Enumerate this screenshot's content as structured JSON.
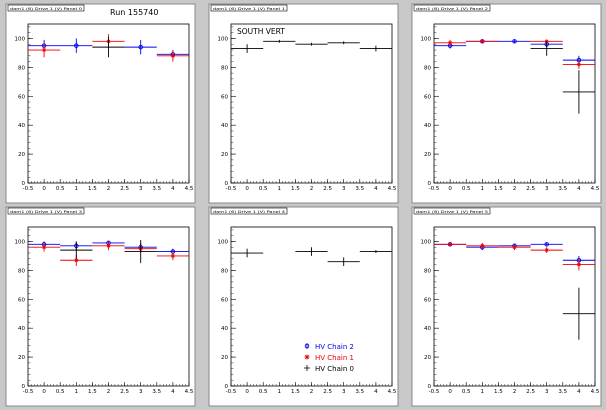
{
  "run_label": "Run 155740",
  "colors": {
    "chain0": "#000000",
    "chain1": "#ee0000",
    "chain2": "#0000ee",
    "background": "#c8c8c8",
    "pad": "#ffffff"
  },
  "legend": [
    {
      "key": "chain2",
      "label": "HV Chain 2",
      "marker": "circle"
    },
    {
      "key": "chain1",
      "label": "HV Chain 1",
      "marker": "star"
    },
    {
      "key": "chain0",
      "label": "HV Chain 0",
      "marker": "cross"
    }
  ],
  "chart_data": [
    {
      "type": "scatter",
      "title": "dam1 (6) Drive 1 (V) Panel 0",
      "annotation": "",
      "x": [
        0,
        1,
        2,
        3,
        4
      ],
      "xlim": [
        -0.5,
        4.5
      ],
      "ylim": [
        0,
        110
      ],
      "xticks": [
        "-0.5",
        "0",
        "0.5",
        "1",
        "1.5",
        "2",
        "2.5",
        "3",
        "3.5",
        "4",
        "4.5"
      ],
      "yticks": [
        "0",
        "20",
        "40",
        "60",
        "80",
        "100"
      ],
      "series": [
        {
          "key": "chain2",
          "values": [
            95,
            95,
            null,
            94,
            89
          ],
          "errors": [
            4,
            5,
            null,
            5,
            3
          ]
        },
        {
          "key": "chain1",
          "values": [
            92,
            null,
            98,
            null,
            88
          ],
          "errors": [
            5,
            null,
            5,
            null,
            4
          ]
        },
        {
          "key": "chain0",
          "values": [
            null,
            null,
            94,
            null,
            null
          ],
          "errors": [
            null,
            null,
            7,
            null,
            null
          ]
        }
      ]
    },
    {
      "type": "scatter",
      "title": "dam1 (6) Drive 1 (V) Panel 1",
      "annotation": "SOUTH VERT",
      "x": [
        0,
        1,
        2,
        3,
        4
      ],
      "xlim": [
        -0.5,
        4.5
      ],
      "ylim": [
        0,
        110
      ],
      "xticks": [
        "-0.5",
        "0",
        "0.5",
        "1",
        "1.5",
        "2",
        "2.5",
        "3",
        "3.5",
        "4",
        "4.5"
      ],
      "yticks": [
        "0",
        "20",
        "40",
        "60",
        "80",
        "100"
      ],
      "series": [
        {
          "key": "chain0",
          "values": [
            93,
            98,
            96,
            97,
            93
          ],
          "errors": [
            3,
            1,
            1,
            1,
            2
          ]
        }
      ]
    },
    {
      "type": "scatter",
      "title": "dam1 (6) Drive 1 (V) Panel 2",
      "annotation": "",
      "x": [
        0,
        1,
        2,
        3,
        4
      ],
      "xlim": [
        -0.5,
        4.5
      ],
      "ylim": [
        0,
        110
      ],
      "xticks": [
        "-0.5",
        "0",
        "0.5",
        "1",
        "1.5",
        "2",
        "2.5",
        "3",
        "3.5",
        "4",
        "4.5"
      ],
      "yticks": [
        "0",
        "20",
        "40",
        "60",
        "80",
        "100"
      ],
      "series": [
        {
          "key": "chain2",
          "values": [
            95,
            98,
            98,
            96,
            85
          ],
          "errors": [
            2,
            1,
            1,
            2,
            3
          ]
        },
        {
          "key": "chain1",
          "values": [
            97,
            98,
            null,
            98,
            82
          ],
          "errors": [
            2,
            1,
            null,
            1,
            3
          ]
        },
        {
          "key": "chain0",
          "values": [
            null,
            null,
            null,
            93,
            63
          ],
          "errors": [
            null,
            null,
            null,
            5,
            15
          ]
        }
      ]
    },
    {
      "type": "scatter",
      "title": "dam1 (6) Drive 1 (V) Panel 3",
      "annotation": "",
      "x": [
        0,
        1,
        2,
        3,
        4
      ],
      "xlim": [
        -0.5,
        4.5
      ],
      "ylim": [
        0,
        110
      ],
      "xticks": [
        "-0.5",
        "0",
        "0.5",
        "1",
        "1.5",
        "2",
        "2.5",
        "3",
        "3.5",
        "4",
        "4.5"
      ],
      "yticks": [
        "0",
        "20",
        "40",
        "60",
        "80",
        "100"
      ],
      "series": [
        {
          "key": "chain2",
          "values": [
            98,
            97,
            99,
            96,
            93
          ],
          "errors": [
            2,
            3,
            1,
            3,
            2
          ]
        },
        {
          "key": "chain1",
          "values": [
            96,
            87,
            97,
            95,
            90
          ],
          "errors": [
            3,
            4,
            3,
            3,
            3
          ]
        },
        {
          "key": "chain0",
          "values": [
            null,
            94,
            null,
            93,
            null
          ],
          "errors": [
            null,
            6,
            null,
            8,
            null
          ]
        }
      ]
    },
    {
      "type": "scatter",
      "title": "dam1 (6) Drive 1 (V) Panel 4",
      "annotation": "",
      "x": [
        0,
        1,
        2,
        3,
        4
      ],
      "xlim": [
        -0.5,
        4.5
      ],
      "ylim": [
        0,
        110
      ],
      "xticks": [
        "-0.5",
        "0",
        "0.5",
        "1",
        "1.5",
        "2",
        "2.5",
        "3",
        "3.5",
        "4",
        "4.5"
      ],
      "yticks": [
        "0",
        "20",
        "40",
        "60",
        "80",
        "100"
      ],
      "showLegend": true,
      "series": [
        {
          "key": "chain0",
          "values": [
            92,
            null,
            93,
            86,
            93
          ],
          "errors": [
            3,
            null,
            3,
            3,
            1
          ]
        }
      ]
    },
    {
      "type": "scatter",
      "title": "dam1 (6) Drive 1 (V) Panel 5",
      "annotation": "",
      "x": [
        0,
        1,
        2,
        3,
        4
      ],
      "xlim": [
        -0.5,
        4.5
      ],
      "ylim": [
        0,
        110
      ],
      "xticks": [
        "-0.5",
        "0",
        "0.5",
        "1",
        "1.5",
        "2",
        "2.5",
        "3",
        "3.5",
        "4",
        "4.5"
      ],
      "yticks": [
        "0",
        "20",
        "40",
        "60",
        "80",
        "100"
      ],
      "series": [
        {
          "key": "chain2",
          "values": [
            98,
            96,
            97,
            98,
            87
          ],
          "errors": [
            1,
            2,
            1,
            1,
            3
          ]
        },
        {
          "key": "chain1",
          "values": [
            98,
            97,
            96,
            94,
            84
          ],
          "errors": [
            1,
            2,
            2,
            2,
            4
          ]
        },
        {
          "key": "chain0",
          "values": [
            null,
            null,
            null,
            null,
            50
          ],
          "errors": [
            null,
            null,
            null,
            null,
            18
          ]
        }
      ]
    }
  ]
}
